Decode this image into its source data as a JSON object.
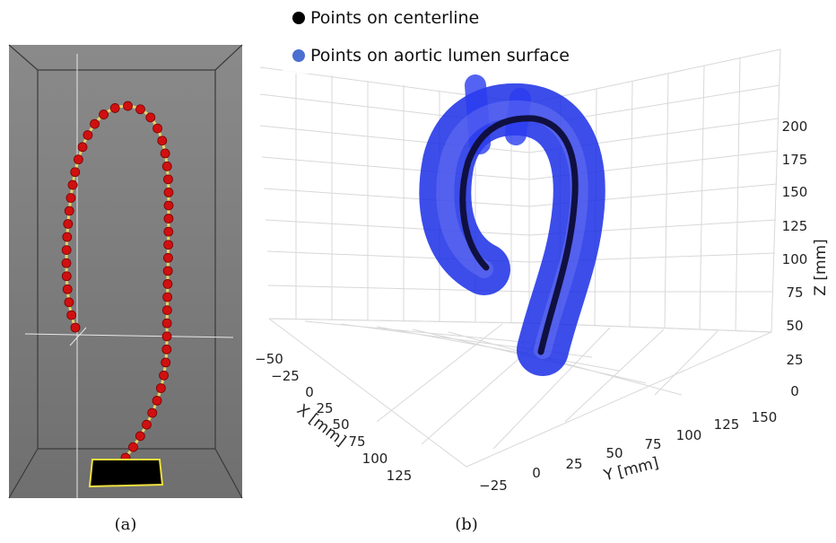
{
  "panels": [
    {
      "caption": "(a)"
    },
    {
      "caption": "(b)",
      "legend": [
        {
          "label": "Points on centerline",
          "color": "#000000"
        },
        {
          "label": "Points on aortic lumen surface",
          "color": "#4a6fd1"
        }
      ],
      "x_axis": {
        "label": "X [mm]",
        "ticks": [
          "−50",
          "−25",
          "0",
          "25",
          "50",
          "75",
          "100",
          "125"
        ]
      },
      "y_axis": {
        "label": "Y [mm]",
        "ticks": [
          "−25",
          "0",
          "25",
          "50",
          "75",
          "100",
          "125",
          "150"
        ]
      },
      "z_axis": {
        "label": "Z [mm]",
        "ticks": [
          "0",
          "25",
          "50",
          "75",
          "100",
          "125",
          "150",
          "175",
          "200"
        ]
      }
    }
  ]
}
